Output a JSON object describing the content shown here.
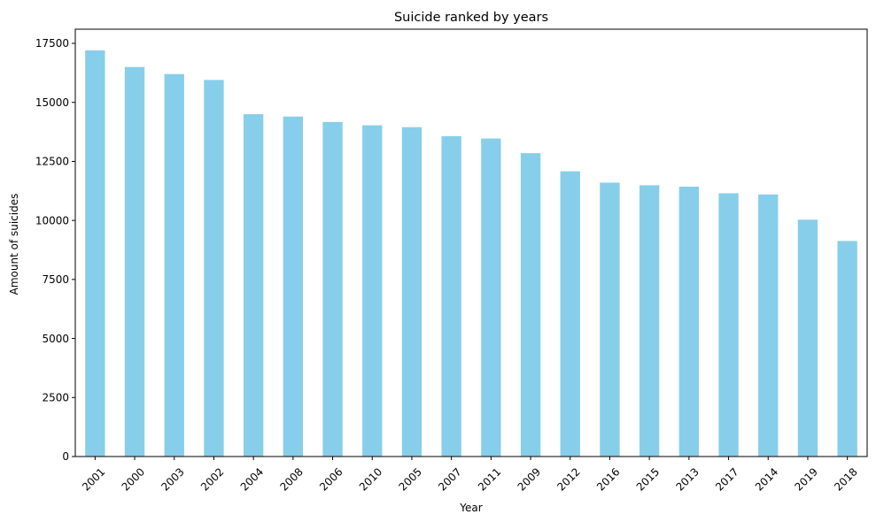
{
  "chart_data": {
    "type": "bar",
    "title": "Suicide ranked by years",
    "xlabel": "Year",
    "ylabel": "Amount of suicides",
    "categories": [
      "2001",
      "2000",
      "2003",
      "2002",
      "2004",
      "2008",
      "2006",
      "2010",
      "2005",
      "2007",
      "2011",
      "2009",
      "2012",
      "2016",
      "2015",
      "2013",
      "2017",
      "2014",
      "2019",
      "2018"
    ],
    "values": [
      17200,
      16500,
      16200,
      15950,
      14500,
      14400,
      14170,
      14030,
      13950,
      13570,
      13470,
      12850,
      12080,
      11600,
      11490,
      11430,
      11150,
      11100,
      10030,
      9130
    ],
    "ylim": [
      0,
      18100
    ],
    "yticks": [
      0,
      2500,
      5000,
      7500,
      10000,
      12500,
      15000,
      17500
    ],
    "bar_color": "#87ceeb",
    "grid": false,
    "legend": "none"
  }
}
